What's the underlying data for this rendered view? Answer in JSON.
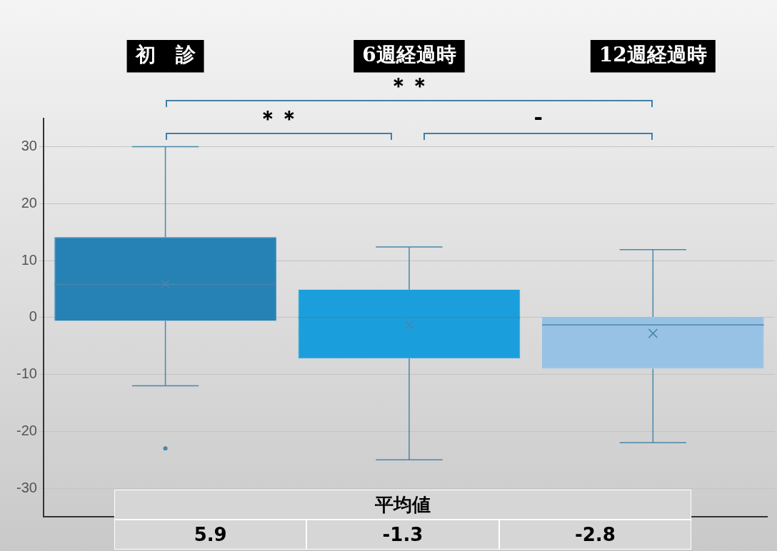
{
  "chart_data": {
    "type": "box",
    "categories": [
      "初　診",
      "6週経過時",
      "12週経過時"
    ],
    "colors": [
      "#2681b5",
      "#1a9fdc",
      "#97c2e6"
    ],
    "boxes": [
      {
        "low": -12,
        "q1": -0.6,
        "median": 5.8,
        "q3": 14.1,
        "high": 30,
        "mean": 5.9,
        "outliers": [
          -23
        ]
      },
      {
        "low": -25,
        "q1": -7.2,
        "median": 0,
        "q3": 4.9,
        "high": 12.4,
        "mean": -1.3
      },
      {
        "low": -22,
        "q1": -9,
        "median": -1.3,
        "q3": 0.1,
        "high": 11.9,
        "mean": -2.8
      }
    ],
    "value_labels": [
      "5.9",
      "-1.3",
      "-2.8"
    ],
    "ylim": [
      -35,
      35
    ],
    "yticks": [
      -30,
      -20,
      -10,
      0,
      10,
      20,
      30
    ],
    "grid": "y",
    "legend": false,
    "annotations": [
      "＊＊",
      "＊＊",
      "-",
      "平均値"
    ]
  }
}
